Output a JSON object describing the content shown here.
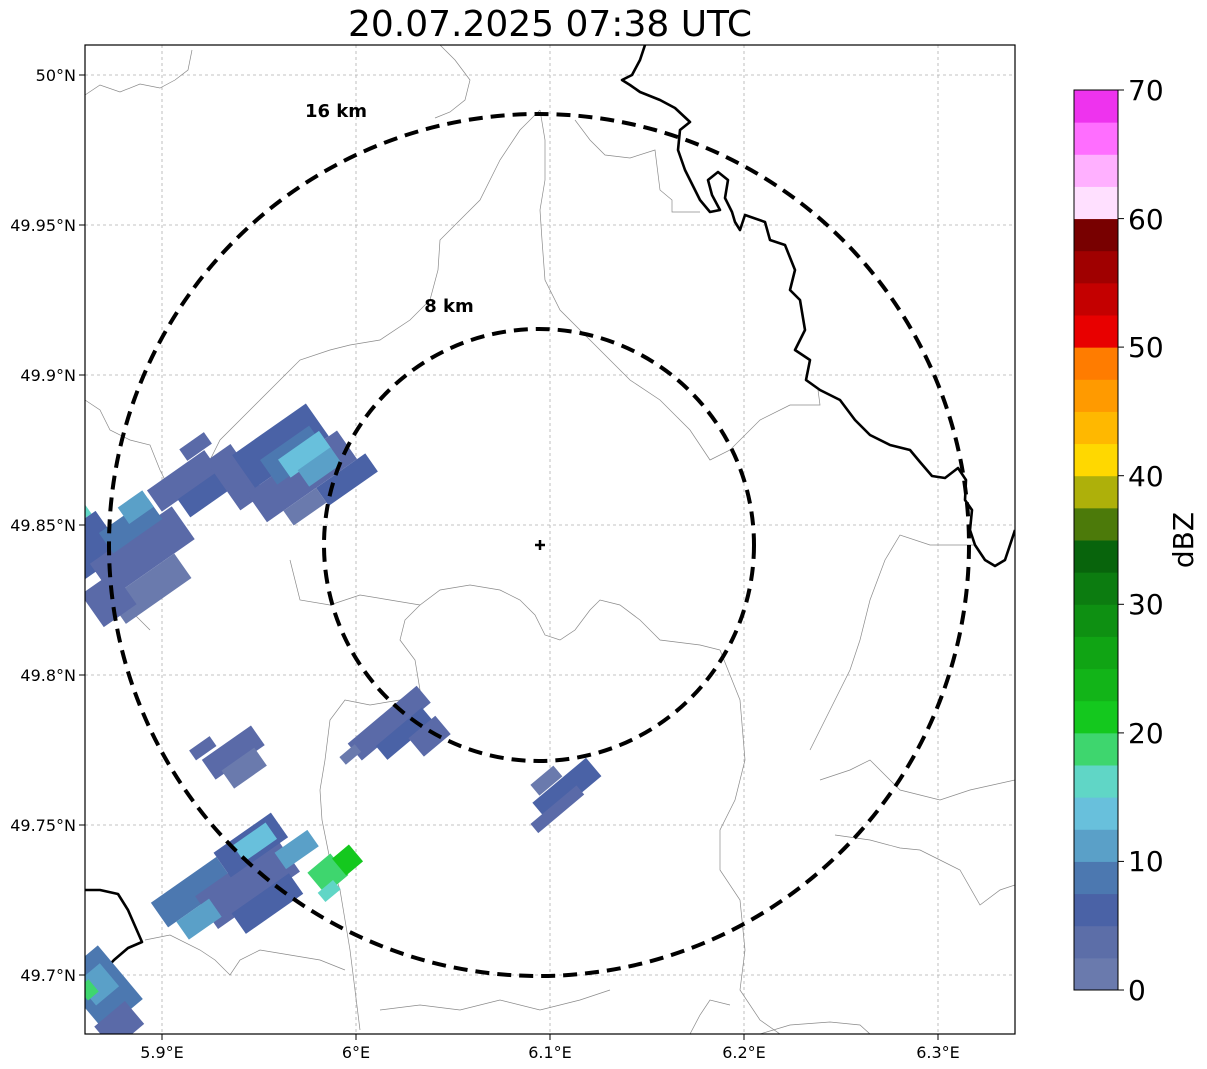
{
  "title": "20.07.2025 07:38 UTC",
  "map": {
    "lon_ticks": [
      "5.9°E",
      "6°E",
      "6.1°E",
      "6.2°E",
      "6.3°E"
    ],
    "lat_ticks": [
      "50°N",
      "49.95°N",
      "49.9°N",
      "49.85°N",
      "49.8°N",
      "49.75°N",
      "49.7°N"
    ],
    "range_rings": [
      {
        "label": "8 km",
        "radius_km": 8
      },
      {
        "label": "16 km",
        "radius_km": 16
      }
    ],
    "radar_site_marker": "plus-icon"
  },
  "colorbar": {
    "label": "dBZ",
    "ticks": [
      "0",
      "10",
      "20",
      "30",
      "40",
      "50",
      "60",
      "70"
    ],
    "colors": [
      "#6a7aad",
      "#5c6ea8",
      "#4a62a6",
      "#4c78b0",
      "#5aa0c8",
      "#68c0dc",
      "#60d6c6",
      "#3ed66e",
      "#14c81e",
      "#12b418",
      "#10a414",
      "#0e9012",
      "#0c7c10",
      "#08640c",
      "#4c7a0a",
      "#aeb00a",
      "#ffd800",
      "#ffb800",
      "#ff9a00",
      "#ff7c00",
      "#e80000",
      "#c40000",
      "#a00000",
      "#780000",
      "#ffe0ff",
      "#ffb0ff",
      "#ff6eff",
      "#ee33ee"
    ]
  }
}
